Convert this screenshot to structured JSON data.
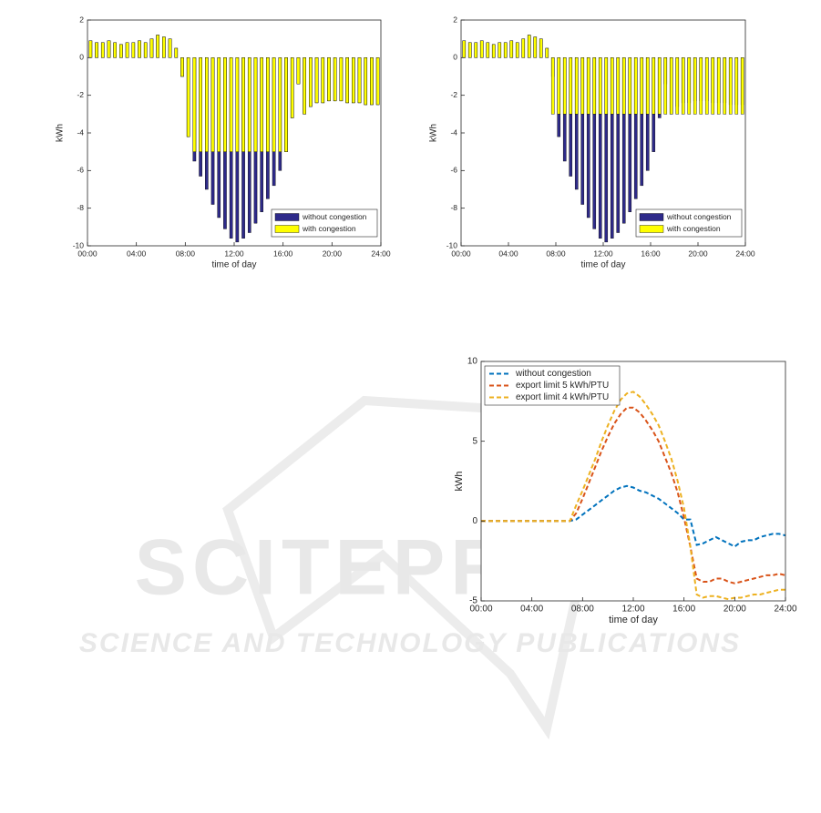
{
  "chart_data": [
    {
      "type": "bar",
      "ylabel": "kWh",
      "xlabel": "time of day",
      "x": [
        0,
        0.5,
        1,
        1.5,
        2,
        2.5,
        3,
        3.5,
        4,
        4.5,
        5,
        5.5,
        6,
        6.5,
        7,
        7.5,
        8,
        8.5,
        9,
        9.5,
        10,
        10.5,
        11,
        11.5,
        12,
        12.5,
        13,
        13.5,
        14,
        14.5,
        15,
        15.5,
        16,
        16.5,
        17,
        17.5,
        18,
        18.5,
        19,
        19.5,
        20,
        20.5,
        21,
        21.5,
        22,
        22.5,
        23,
        23.5
      ],
      "series": [
        {
          "name": "without congestion",
          "color": "#2e2a8a",
          "values": [
            0.9,
            0.8,
            0.8,
            0.9,
            0.8,
            0.7,
            0.8,
            0.8,
            0.9,
            0.8,
            1.0,
            1.2,
            1.1,
            1.0,
            0.5,
            -1,
            -4.2,
            -5.5,
            -6.3,
            -7,
            -7.8,
            -8.5,
            -9.1,
            -9.6,
            -9.8,
            -9.6,
            -9.3,
            -8.8,
            -8.2,
            -7.5,
            -6.8,
            -6,
            -5,
            -3.2,
            -1.4,
            -3.0,
            -2.6,
            -2.4,
            -2.4,
            -2.3,
            -2.3,
            -2.3,
            -2.4,
            -2.4,
            -2.4,
            -2.5,
            -2.5,
            -2.5
          ]
        },
        {
          "name": "with congestion",
          "color": "#ffff00",
          "values": [
            0.9,
            0.8,
            0.8,
            0.9,
            0.8,
            0.7,
            0.8,
            0.8,
            0.9,
            0.8,
            1.0,
            1.2,
            1.1,
            1.0,
            0.5,
            -1,
            -4.2,
            -5,
            -5,
            -5,
            -5,
            -5,
            -5,
            -5,
            -5,
            -5,
            -5,
            -5,
            -5,
            -5,
            -5,
            -5,
            -5,
            -3.2,
            -1.4,
            -3.0,
            -2.6,
            -2.4,
            -2.4,
            -2.3,
            -2.3,
            -2.3,
            -2.4,
            -2.4,
            -2.4,
            -2.5,
            -2.5,
            -2.5
          ]
        }
      ],
      "xlim": [
        0,
        24
      ],
      "xticks": [
        {
          "value": 0,
          "label": "00:00"
        },
        {
          "value": 4,
          "label": "04:00"
        },
        {
          "value": 8,
          "label": "08:00"
        },
        {
          "value": 12,
          "label": "12:00"
        },
        {
          "value": 16,
          "label": "16:00"
        },
        {
          "value": 20,
          "label": "20:00"
        },
        {
          "value": 24,
          "label": "24:00"
        }
      ],
      "ylim": [
        -10,
        2
      ],
      "yticks": [
        -10,
        -8,
        -6,
        -4,
        -2,
        0,
        2
      ],
      "grid": false,
      "legend": "lower right"
    },
    {
      "type": "bar",
      "ylabel": "kWh",
      "xlabel": "time of day",
      "x": [
        0,
        0.5,
        1,
        1.5,
        2,
        2.5,
        3,
        3.5,
        4,
        4.5,
        5,
        5.5,
        6,
        6.5,
        7,
        7.5,
        8,
        8.5,
        9,
        9.5,
        10,
        10.5,
        11,
        11.5,
        12,
        12.5,
        13,
        13.5,
        14,
        14.5,
        15,
        15.5,
        16,
        16.5,
        17,
        17.5,
        18,
        18.5,
        19,
        19.5,
        20,
        20.5,
        21,
        21.5,
        22,
        22.5,
        23,
        23.5
      ],
      "series": [
        {
          "name": "without congestion",
          "color": "#2e2a8a",
          "values": [
            0.9,
            0.8,
            0.8,
            0.9,
            0.8,
            0.7,
            0.8,
            0.8,
            0.9,
            0.8,
            1.0,
            1.2,
            1.1,
            1.0,
            0.5,
            -1,
            -4.2,
            -5.5,
            -6.3,
            -7,
            -7.8,
            -8.5,
            -9.1,
            -9.6,
            -9.8,
            -9.6,
            -9.3,
            -8.8,
            -8.2,
            -7.5,
            -6.8,
            -6,
            -5,
            -3.2,
            -1.4,
            -3.0,
            -2.6,
            -2.4,
            -2.4,
            -2.3,
            -2.3,
            -2.3,
            -2.4,
            -2.4,
            -2.4,
            -2.5,
            -2.5,
            -2.5
          ]
        },
        {
          "name": "with congestion",
          "color": "#ffff00",
          "values": [
            0.9,
            0.8,
            0.8,
            0.9,
            0.8,
            0.7,
            0.8,
            0.8,
            0.9,
            0.8,
            1.0,
            1.2,
            1.1,
            1.0,
            0.5,
            -3,
            -3,
            -3,
            -3,
            -3,
            -3,
            -3,
            -3,
            -3,
            -3,
            -3,
            -3,
            -3,
            -3,
            -3,
            -3,
            -3,
            -3,
            -3,
            -3,
            -3,
            -3,
            -3,
            -3,
            -3,
            -3,
            -3,
            -3,
            -3,
            -3,
            -3,
            -3,
            -3
          ]
        }
      ],
      "xlim": [
        0,
        24
      ],
      "xticks": [
        {
          "value": 0,
          "label": "00:00"
        },
        {
          "value": 4,
          "label": "04:00"
        },
        {
          "value": 8,
          "label": "08:00"
        },
        {
          "value": 12,
          "label": "12:00"
        },
        {
          "value": 16,
          "label": "16:00"
        },
        {
          "value": 20,
          "label": "20:00"
        },
        {
          "value": 24,
          "label": "24:00"
        }
      ],
      "ylim": [
        -10,
        2
      ],
      "yticks": [
        -10,
        -8,
        -6,
        -4,
        -2,
        0,
        2
      ],
      "grid": false,
      "legend": "lower right"
    },
    {
      "type": "line",
      "ylabel": "kWh",
      "xlabel": "time of day",
      "linestyle": "dashed",
      "x": [
        0,
        0.5,
        1,
        1.5,
        2,
        2.5,
        3,
        3.5,
        4,
        4.5,
        5,
        5.5,
        6,
        6.5,
        7,
        7.5,
        8,
        8.5,
        9,
        9.5,
        10,
        10.5,
        11,
        11.5,
        12,
        12.5,
        13,
        13.5,
        14,
        14.5,
        15,
        15.5,
        16,
        16.5,
        17,
        17.5,
        18,
        18.5,
        19,
        19.5,
        20,
        20.5,
        21,
        21.5,
        22,
        22.5,
        23,
        23.5,
        24
      ],
      "series": [
        {
          "name": "without congestion",
          "color": "#0072bd",
          "values": [
            0,
            0,
            0,
            0,
            0,
            0,
            0,
            0,
            0,
            0,
            0,
            0,
            0,
            0,
            0,
            0.1,
            0.4,
            0.7,
            1.0,
            1.3,
            1.6,
            1.9,
            2.1,
            2.2,
            2.1,
            1.9,
            1.8,
            1.6,
            1.4,
            1.1,
            0.8,
            0.5,
            0.1,
            0.1,
            -1.5,
            -1.4,
            -1.2,
            -1.0,
            -1.2,
            -1.4,
            -1.6,
            -1.3,
            -1.2,
            -1.2,
            -1.0,
            -0.9,
            -0.8,
            -0.8,
            -0.9
          ]
        },
        {
          "name": "export limit 5 kWh/PTU",
          "color": "#d95319",
          "values": [
            0,
            0,
            0,
            0,
            0,
            0,
            0,
            0,
            0,
            0,
            0,
            0,
            0,
            0,
            0,
            0.5,
            1.4,
            2.4,
            3.4,
            4.4,
            5.3,
            6.1,
            6.7,
            7.1,
            7.1,
            6.8,
            6.3,
            5.7,
            5.0,
            4.0,
            3.0,
            1.8,
            0.2,
            -1.6,
            -3.6,
            -3.8,
            -3.8,
            -3.6,
            -3.6,
            -3.8,
            -3.9,
            -3.8,
            -3.7,
            -3.6,
            -3.5,
            -3.4,
            -3.4,
            -3.3,
            -3.4
          ]
        },
        {
          "name": "export limit 4 kWh/PTU",
          "color": "#edb120",
          "values": [
            0,
            0,
            0,
            0,
            0,
            0,
            0,
            0,
            0,
            0,
            0,
            0,
            0,
            0,
            0,
            1.0,
            1.9,
            2.9,
            3.9,
            5.0,
            6.0,
            6.9,
            7.6,
            8.0,
            8.1,
            7.8,
            7.3,
            6.7,
            6.0,
            5.0,
            3.9,
            2.5,
            0.8,
            -1.6,
            -4.6,
            -4.8,
            -4.7,
            -4.7,
            -4.8,
            -4.9,
            -4.8,
            -4.8,
            -4.7,
            -4.6,
            -4.6,
            -4.5,
            -4.4,
            -4.3,
            -4.3
          ]
        }
      ],
      "xlim": [
        0,
        24
      ],
      "xticks": [
        {
          "value": 0,
          "label": "00:00"
        },
        {
          "value": 4,
          "label": "04:00"
        },
        {
          "value": 8,
          "label": "08:00"
        },
        {
          "value": 12,
          "label": "12:00"
        },
        {
          "value": 16,
          "label": "16:00"
        },
        {
          "value": 20,
          "label": "20:00"
        },
        {
          "value": 24,
          "label": "24:00"
        }
      ],
      "ylim": [
        -5,
        10
      ],
      "yticks": [
        -5,
        0,
        5,
        10
      ],
      "grid": false,
      "legend": "upper left"
    }
  ],
  "watermark": {
    "title": "SCITEPRESS",
    "subtitle": "SCIENCE AND TECHNOLOGY PUBLICATIONS"
  }
}
